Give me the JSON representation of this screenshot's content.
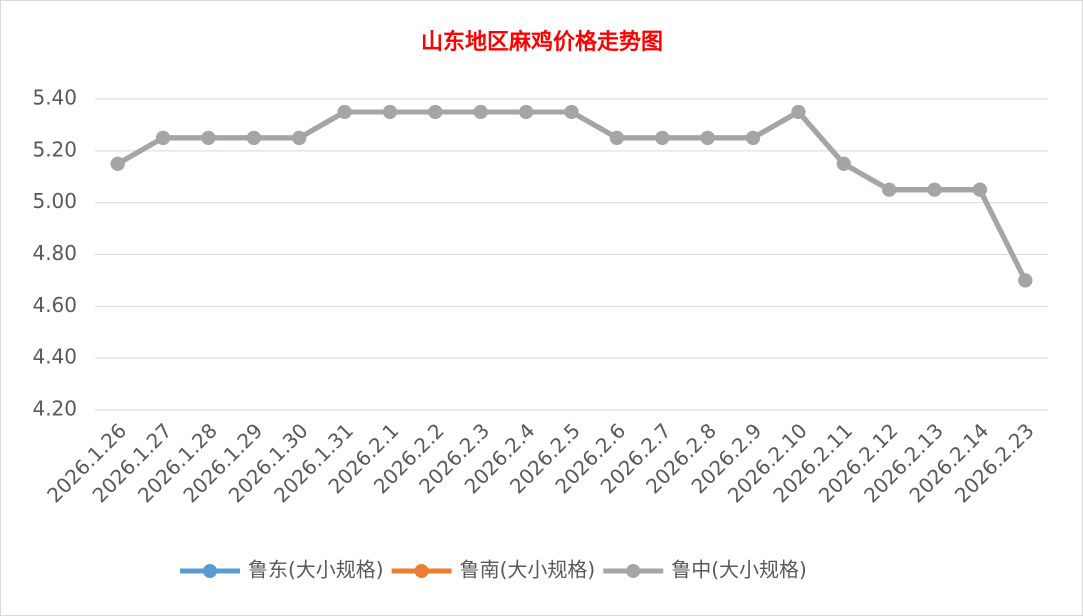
{
  "chart_data": {
    "type": "line",
    "title": "山东地区麻鸡价格走势图",
    "categories": [
      "2026.1.26",
      "2026.1.27",
      "2026.1.28",
      "2026.1.29",
      "2026.1.30",
      "2026.1.31",
      "2026.2.1",
      "2026.2.2",
      "2026.2.3",
      "2026.2.4",
      "2026.2.5",
      "2026.2.6",
      "2026.2.7",
      "2026.2.8",
      "2026.2.9",
      "2026.2.10",
      "2026.2.11",
      "2026.2.12",
      "2026.2.13",
      "2026.2.14",
      "2026.2.23"
    ],
    "series": [
      {
        "name": "鲁东(大小规格)",
        "color": "#5b9bd5",
        "values": [
          5.15,
          5.25,
          5.25,
          5.25,
          5.25,
          5.35,
          5.35,
          5.35,
          5.35,
          5.35,
          5.35,
          5.25,
          5.25,
          5.25,
          5.25,
          5.35,
          5.15,
          5.05,
          5.05,
          5.05,
          4.7
        ]
      },
      {
        "name": "鲁南(大小规格)",
        "color": "#ed7d31",
        "values": [
          5.15,
          5.25,
          5.25,
          5.25,
          5.25,
          5.35,
          5.35,
          5.35,
          5.35,
          5.35,
          5.35,
          5.25,
          5.25,
          5.25,
          5.25,
          5.35,
          5.15,
          5.05,
          5.05,
          5.05,
          4.7
        ]
      },
      {
        "name": "鲁中(大小规格)",
        "color": "#a5a5a5",
        "values": [
          5.15,
          5.25,
          5.25,
          5.25,
          5.25,
          5.35,
          5.35,
          5.35,
          5.35,
          5.35,
          5.35,
          5.25,
          5.25,
          5.25,
          5.25,
          5.35,
          5.15,
          5.05,
          5.05,
          5.05,
          4.7
        ]
      }
    ],
    "ylim": [
      4.2,
      5.4
    ],
    "yticks": [
      {
        "value": 4.2,
        "label": "4.20"
      },
      {
        "value": 4.4,
        "label": "4.40"
      },
      {
        "value": 4.6,
        "label": "4.60"
      },
      {
        "value": 4.8,
        "label": "4.80"
      },
      {
        "value": 5.0,
        "label": "5.00"
      },
      {
        "value": 5.2,
        "label": "5.20"
      },
      {
        "value": 5.4,
        "label": "5.40"
      }
    ],
    "grid": true,
    "legend": "bottom"
  }
}
